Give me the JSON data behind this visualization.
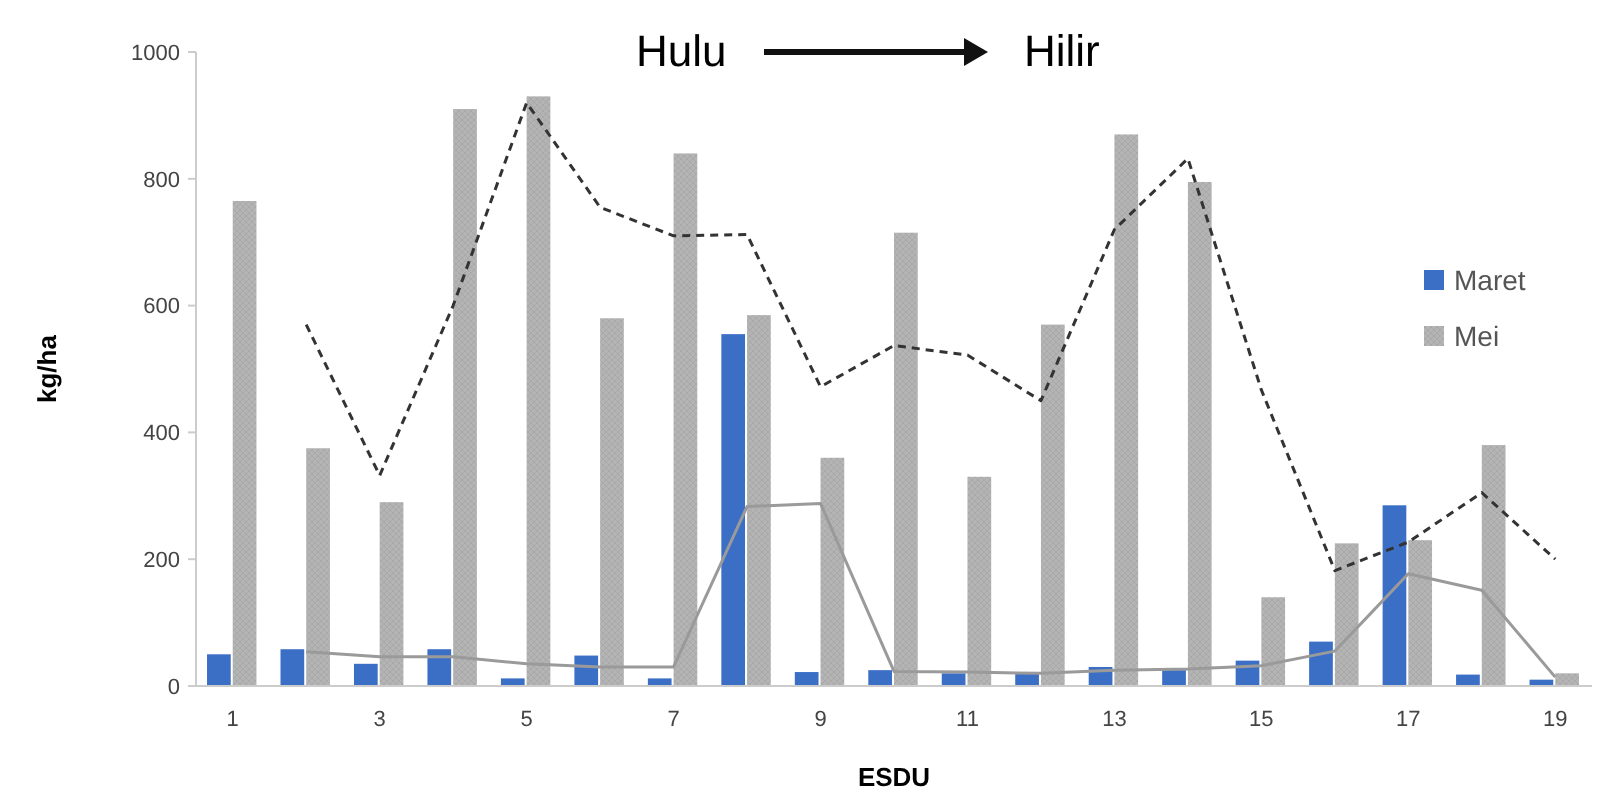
{
  "chart_data": {
    "type": "bar",
    "xlabel": "ESDU",
    "ylabel": "kg/ha",
    "annotations": [
      "Hulu",
      "Hilir"
    ],
    "categories": [
      "1",
      null,
      "3",
      null,
      "5",
      null,
      "7",
      null,
      "9",
      null,
      "11",
      null,
      "13",
      null,
      "15",
      null,
      "17",
      null,
      "19"
    ],
    "series": [
      {
        "name": "Maret",
        "color": "#3b6fc6",
        "values": [
          50,
          58,
          35,
          58,
          12,
          48,
          12,
          555,
          22,
          25,
          20,
          20,
          30,
          25,
          40,
          70,
          285,
          18,
          10
        ]
      },
      {
        "name": "Mei",
        "color": "#b4b4b4",
        "values": [
          765,
          375,
          290,
          910,
          930,
          580,
          840,
          585,
          360,
          715,
          330,
          570,
          870,
          795,
          140,
          225,
          230,
          380,
          20
        ]
      },
      {
        "type": "line",
        "color": "#333333",
        "line_style": "dashed",
        "values": [
          null,
          570,
          332,
          600,
          920,
          755,
          710,
          712,
          472,
          537,
          522,
          450,
          720,
          832,
          467,
          182,
          227,
          305,
          200
        ]
      },
      {
        "type": "line",
        "color": "#9a9a9a",
        "line_style": "solid",
        "values": [
          null,
          54,
          46,
          46,
          35,
          30,
          30,
          283,
          288,
          23,
          22,
          20,
          25,
          27,
          32,
          55,
          177,
          151,
          14
        ]
      }
    ],
    "ylim": [
      0,
      1000
    ],
    "yticks": [
      0,
      200,
      400,
      600,
      800,
      1000
    ],
    "legend": "right"
  }
}
